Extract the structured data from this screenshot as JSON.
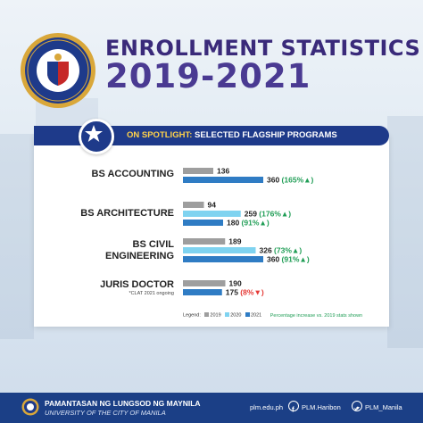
{
  "header": {
    "title_line1": "ENROLLMENT STATISTICS",
    "title_line2": "2019-2021"
  },
  "spotlight": {
    "prefix": "ON SPOTLIGHT:",
    "text": "SELECTED FLAGSHIP PROGRAMS"
  },
  "colors": {
    "y2019": "#9e9e9e",
    "y2020": "#7fd3f0",
    "y2021": "#2f7cc4",
    "increase": "#1f9d55",
    "decrease": "#e53935",
    "navy": "#1e3a8a"
  },
  "chart_data": {
    "type": "bar",
    "orientation": "horizontal",
    "categories": [
      "BS ACCOUNTING",
      "BS ARCHITECTURE",
      "BS CIVIL ENGINEERING",
      "JURIS DOCTOR"
    ],
    "category_labels": [
      [
        "BS ACCOUNTING"
      ],
      [
        "BS ARCHITECTURE"
      ],
      [
        "BS CIVIL",
        "ENGINEERING"
      ],
      [
        "JURIS DOCTOR"
      ]
    ],
    "category_notes": [
      "",
      "",
      "",
      "*CLAT 2021 ongoing"
    ],
    "series": [
      {
        "name": "2019",
        "values": [
          136,
          94,
          189,
          190
        ]
      },
      {
        "name": "2020",
        "values": [
          null,
          259,
          326,
          null
        ]
      },
      {
        "name": "2021",
        "values": [
          360,
          180,
          360,
          175
        ]
      }
    ],
    "changes": {
      "2020": [
        null,
        "176%",
        "73%",
        null
      ],
      "2021": [
        "165%",
        "91%",
        "91%",
        "8%"
      ]
    },
    "change_direction": {
      "2020": [
        null,
        "up",
        "up",
        null
      ],
      "2021": [
        "up",
        "up",
        "up",
        "down"
      ]
    },
    "legend": {
      "title": "Legend:",
      "items": [
        "2019",
        "2020",
        "2021"
      ],
      "note": "Percentage increase vs. 2019 stats shown"
    }
  },
  "footer": {
    "university": "PAMANTASAN NG LUNGSOD NG MAYNILA",
    "subtitle": "UNIVERSITY OF THE CITY OF MANILA",
    "website": "plm.edu.ph",
    "facebook": "PLM.Haribon",
    "twitter": "PLM_Manila"
  }
}
